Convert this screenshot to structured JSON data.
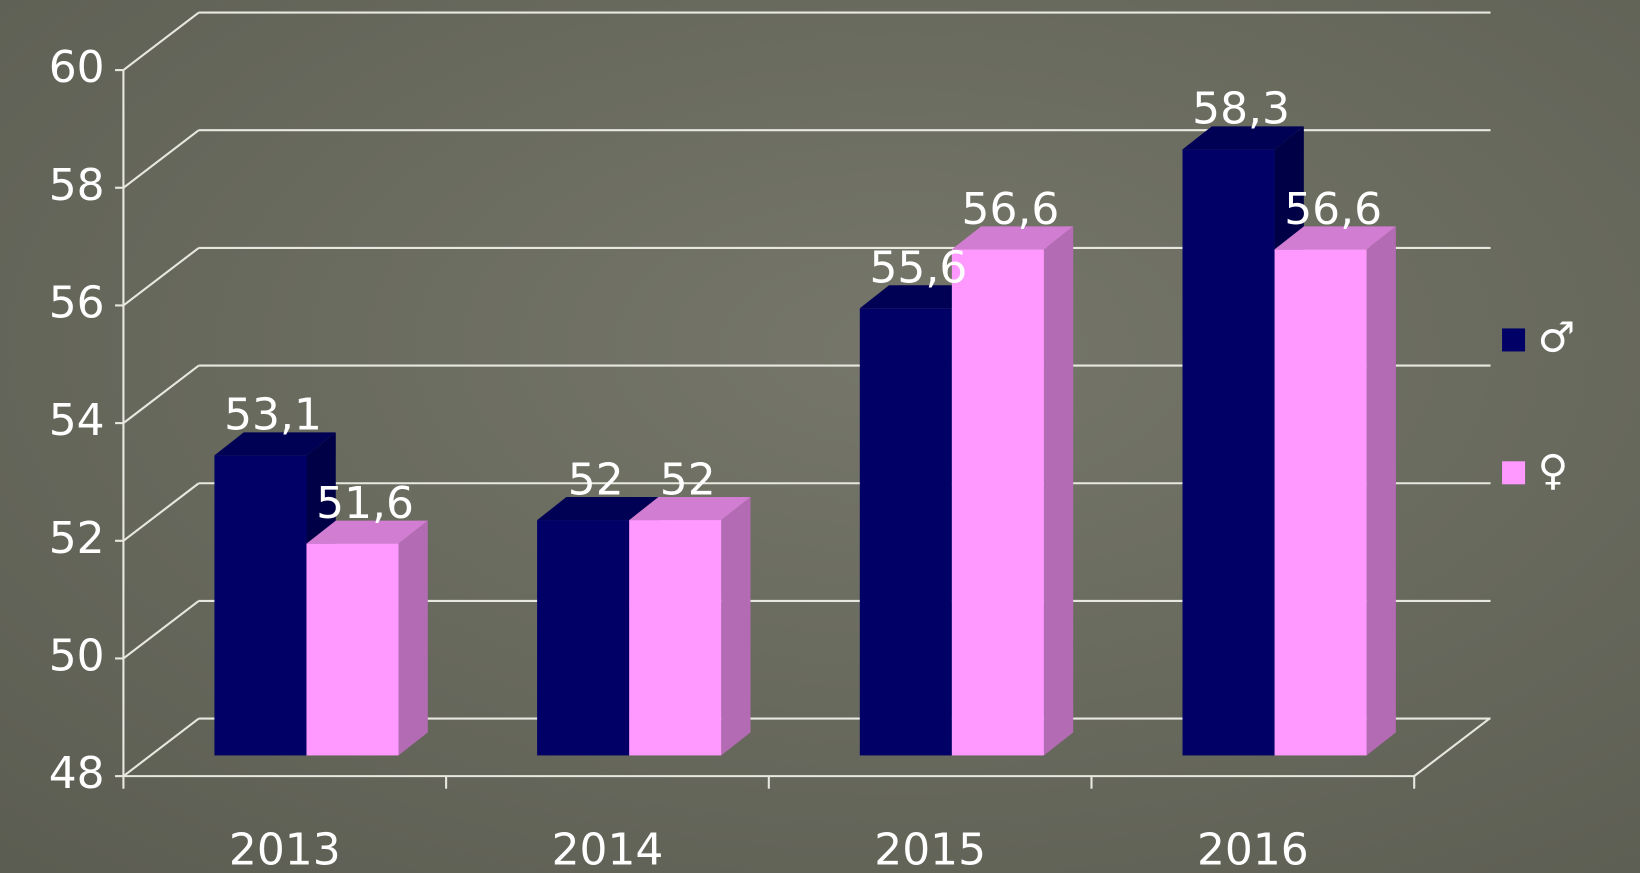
{
  "chart_data": {
    "type": "bar3d",
    "categories": [
      "2013",
      "2014",
      "2015",
      "2016"
    ],
    "series": [
      {
        "name": "♂",
        "color": "#000066",
        "values": [
          53.1,
          52,
          55.6,
          58.3
        ],
        "value_labels": [
          "53,1",
          "52",
          "55,6",
          "58,3"
        ]
      },
      {
        "name": "♀",
        "color": "#ff99ff",
        "values": [
          51.6,
          52,
          56.6,
          56.6
        ],
        "value_labels": [
          "51,6",
          "52",
          "56,6",
          "56,6"
        ]
      }
    ],
    "ylim": [
      48,
      60
    ],
    "yticks": [
      48,
      50,
      52,
      54,
      56,
      58,
      60
    ],
    "grid": true,
    "legend": "right"
  }
}
